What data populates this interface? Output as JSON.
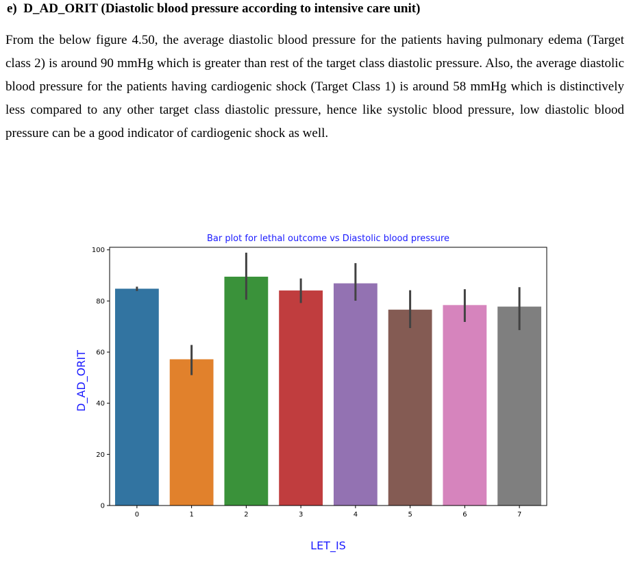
{
  "section": {
    "heading": "e)  D_AD_ORIT (Diastolic blood pressure according to intensive care unit)",
    "paragraph": "From the below figure 4.50, the average diastolic blood pressure for the patients having pulmonary edema (Target class 2) is around 90 mmHg which is greater than rest of the target class diastolic pressure. Also, the average diastolic blood pressure for the patients having cardiogenic shock (Target Class 1) is around 58 mmHg which is distinctively less compared to any other target class diastolic pressure, hence like systolic blood pressure, low diastolic blood pressure can be a good indicator of cardiogenic shock as well."
  },
  "chart_data": {
    "type": "bar",
    "title": "Bar plot for lethal outcome vs Diastolic blood pressure",
    "xlabel": "LET_IS",
    "ylabel": "D_AD_ORIT",
    "categories": [
      "0",
      "1",
      "2",
      "3",
      "4",
      "5",
      "6",
      "7"
    ],
    "values": [
      84.8,
      57.2,
      89.5,
      84.1,
      86.9,
      76.6,
      78.4,
      77.8
    ],
    "error_low": [
      83.9,
      51.0,
      80.5,
      79.2,
      80.1,
      69.4,
      71.8,
      68.6
    ],
    "error_high": [
      85.6,
      62.8,
      98.9,
      88.8,
      94.8,
      84.2,
      84.6,
      85.4
    ],
    "colors": [
      "#3274a1",
      "#e1812c",
      "#3a923a",
      "#c03d3e",
      "#9372b2",
      "#845b53",
      "#d684bd",
      "#7f7f7f"
    ],
    "error_color": "#424242",
    "title_color": "#1a1aff",
    "label_color": "#1a1aff",
    "ylim": [
      0,
      101
    ],
    "yticks": [
      0,
      20,
      40,
      60,
      80,
      100
    ],
    "grid": false,
    "legend": "none"
  }
}
